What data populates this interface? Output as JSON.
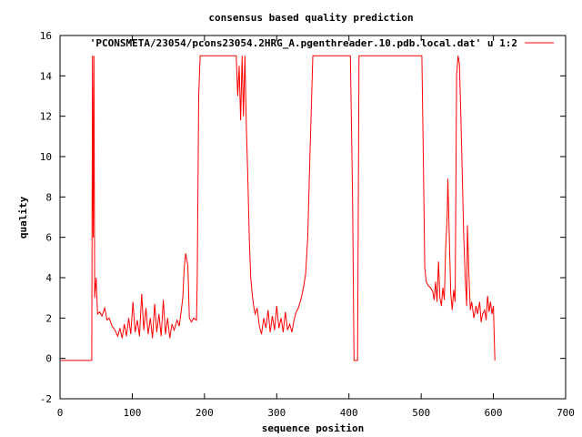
{
  "chart_data": {
    "type": "line",
    "title": "consensus based quality prediction",
    "xlabel": "sequence position",
    "ylabel": "quality",
    "xlim": [
      0,
      700
    ],
    "ylim": [
      -2,
      16
    ],
    "x_ticks": [
      "0",
      "100",
      "200",
      "300",
      "400",
      "500",
      "600",
      "700"
    ],
    "y_ticks": [
      "-2",
      "0",
      "2",
      "4",
      "6",
      "8",
      "10",
      "12",
      "14",
      "16"
    ],
    "grid": false,
    "legend_position": "top-right",
    "series": [
      {
        "name": "'PCONSMETA/23054/pcons23054.2HRG_A.pgenthreader.10.pdb.local.dat' u 1:2",
        "color": "#ff0000",
        "points": [
          [
            1,
            -0.1
          ],
          [
            44,
            -0.1
          ],
          [
            45,
            15.0
          ],
          [
            46,
            6.0
          ],
          [
            47,
            15.0
          ],
          [
            48,
            3.0
          ],
          [
            50,
            4.0
          ],
          [
            52,
            2.2
          ],
          [
            55,
            2.3
          ],
          [
            58,
            2.1
          ],
          [
            62,
            2.5
          ],
          [
            65,
            1.9
          ],
          [
            68,
            2.0
          ],
          [
            72,
            1.6
          ],
          [
            76,
            1.4
          ],
          [
            80,
            1.1
          ],
          [
            83,
            1.5
          ],
          [
            86,
            1.0
          ],
          [
            89,
            1.7
          ],
          [
            92,
            1.1
          ],
          [
            95,
            2.0
          ],
          [
            98,
            1.2
          ],
          [
            101,
            2.8
          ],
          [
            104,
            1.3
          ],
          [
            107,
            1.9
          ],
          [
            110,
            1.1
          ],
          [
            113,
            3.2
          ],
          [
            116,
            1.4
          ],
          [
            119,
            2.5
          ],
          [
            122,
            1.2
          ],
          [
            125,
            2.0
          ],
          [
            128,
            1.0
          ],
          [
            131,
            2.7
          ],
          [
            134,
            1.3
          ],
          [
            137,
            2.2
          ],
          [
            140,
            1.1
          ],
          [
            143,
            2.9
          ],
          [
            146,
            1.2
          ],
          [
            149,
            2.0
          ],
          [
            152,
            1.0
          ],
          [
            155,
            1.7
          ],
          [
            158,
            1.4
          ],
          [
            162,
            1.9
          ],
          [
            165,
            1.6
          ],
          [
            168,
            2.4
          ],
          [
            170,
            3.0
          ],
          [
            172,
            4.5
          ],
          [
            174,
            5.2
          ],
          [
            177,
            4.6
          ],
          [
            179,
            2.0
          ],
          [
            182,
            1.8
          ],
          [
            185,
            2.0
          ],
          [
            189,
            1.9
          ],
          [
            190,
            4.0
          ],
          [
            192,
            13.0
          ],
          [
            194,
            15.0
          ],
          [
            244,
            15.0
          ],
          [
            246,
            13.0
          ],
          [
            248,
            14.5
          ],
          [
            250,
            11.8
          ],
          [
            252,
            15.0
          ],
          [
            254,
            12.0
          ],
          [
            256,
            15.0
          ],
          [
            258,
            11.5
          ],
          [
            260,
            9.0
          ],
          [
            262,
            6.0
          ],
          [
            264,
            4.0
          ],
          [
            266,
            3.2
          ],
          [
            268,
            2.6
          ],
          [
            270,
            2.2
          ],
          [
            273,
            2.5
          ],
          [
            276,
            1.6
          ],
          [
            279,
            1.2
          ],
          [
            282,
            2.0
          ],
          [
            285,
            1.5
          ],
          [
            288,
            2.4
          ],
          [
            291,
            1.3
          ],
          [
            294,
            2.1
          ],
          [
            297,
            1.4
          ],
          [
            300,
            2.6
          ],
          [
            303,
            1.5
          ],
          [
            306,
            2.0
          ],
          [
            309,
            1.3
          ],
          [
            312,
            2.3
          ],
          [
            315,
            1.4
          ],
          [
            318,
            1.7
          ],
          [
            321,
            1.3
          ],
          [
            324,
            1.9
          ],
          [
            327,
            2.3
          ],
          [
            330,
            2.5
          ],
          [
            334,
            3.0
          ],
          [
            337,
            3.5
          ],
          [
            340,
            4.2
          ],
          [
            343,
            6.0
          ],
          [
            346,
            10.0
          ],
          [
            350,
            15.0
          ],
          [
            402,
            15.0
          ],
          [
            405,
            8.0
          ],
          [
            407,
            -0.1
          ],
          [
            412,
            -0.1
          ],
          [
            414,
            15.0
          ],
          [
            501,
            15.0
          ],
          [
            503,
            10.0
          ],
          [
            505,
            4.5
          ],
          [
            507,
            3.8
          ],
          [
            510,
            3.6
          ],
          [
            513,
            3.5
          ],
          [
            516,
            3.3
          ],
          [
            518,
            2.9
          ],
          [
            520,
            3.8
          ],
          [
            522,
            2.8
          ],
          [
            524,
            4.8
          ],
          [
            526,
            3.0
          ],
          [
            528,
            2.6
          ],
          [
            530,
            3.5
          ],
          [
            532,
            2.9
          ],
          [
            534,
            5.5
          ],
          [
            536,
            7.0
          ],
          [
            537,
            8.9
          ],
          [
            539,
            6.0
          ],
          [
            541,
            3.2
          ],
          [
            543,
            2.4
          ],
          [
            545,
            3.4
          ],
          [
            547,
            2.8
          ],
          [
            549,
            14.0
          ],
          [
            551,
            15.0
          ],
          [
            553,
            14.6
          ],
          [
            555,
            12.0
          ],
          [
            557,
            9.0
          ],
          [
            559,
            6.0
          ],
          [
            561,
            4.0
          ],
          [
            563,
            2.6
          ],
          [
            564,
            6.6
          ],
          [
            566,
            4.2
          ],
          [
            568,
            2.4
          ],
          [
            570,
            2.8
          ],
          [
            573,
            2.0
          ],
          [
            576,
            2.6
          ],
          [
            578,
            2.2
          ],
          [
            581,
            2.8
          ],
          [
            583,
            1.8
          ],
          [
            585,
            2.2
          ],
          [
            588,
            2.4
          ],
          [
            590,
            1.9
          ],
          [
            592,
            3.1
          ],
          [
            594,
            2.3
          ],
          [
            596,
            2.8
          ],
          [
            598,
            2.2
          ],
          [
            600,
            2.6
          ],
          [
            601,
            1.2
          ],
          [
            602,
            -0.1
          ]
        ]
      }
    ]
  }
}
